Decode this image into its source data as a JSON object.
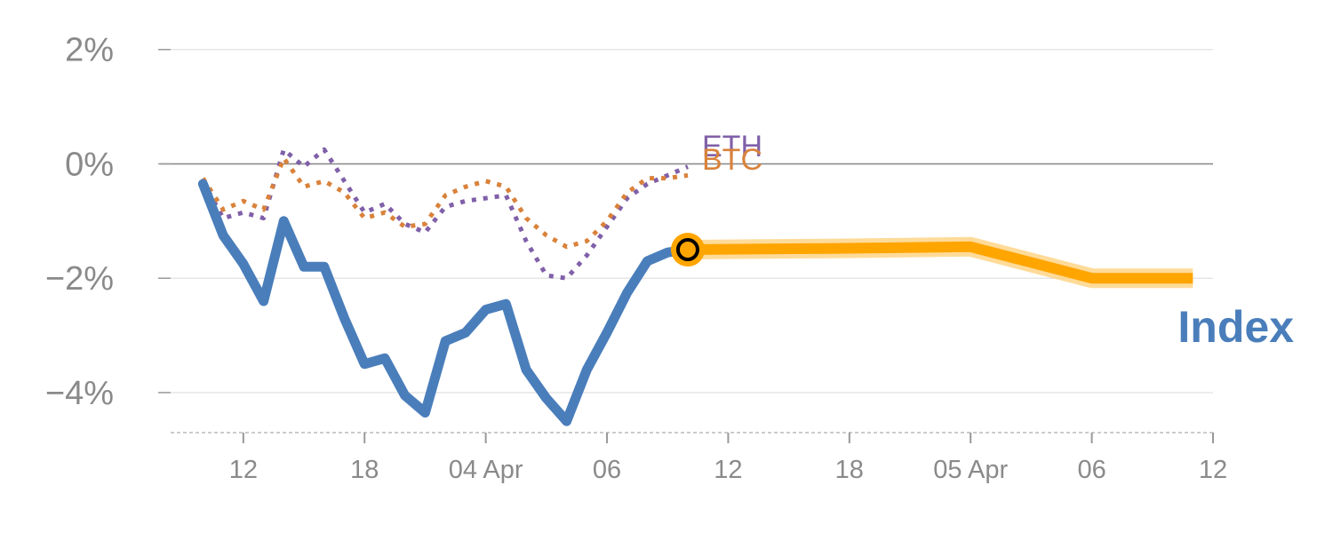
{
  "chart_data": {
    "type": "line",
    "title": "",
    "xlabel": "",
    "ylabel": "",
    "ylim": [
      -4.7,
      2.4
    ],
    "y_ticks": [
      {
        "value": 2,
        "label": "2%"
      },
      {
        "value": 0,
        "label": "0%"
      },
      {
        "value": -2,
        "label": "−2%"
      },
      {
        "value": -4,
        "label": "−4%"
      }
    ],
    "x_ticks": [
      {
        "x": 12,
        "label": "12"
      },
      {
        "x": 18,
        "label": "18"
      },
      {
        "x": 24,
        "label": "04 Apr"
      },
      {
        "x": 30,
        "label": "06"
      },
      {
        "x": 36,
        "label": "12"
      },
      {
        "x": 42,
        "label": "18"
      },
      {
        "x": 48,
        "label": "05 Apr"
      },
      {
        "x": 54,
        "label": "06"
      },
      {
        "x": 60,
        "label": "12"
      }
    ],
    "xlim": [
      8.4,
      60
    ],
    "zero_line": 0,
    "grid": true,
    "colors": {
      "index": "#4a7ebb",
      "btc": "#d9823b",
      "eth": "#8060a8",
      "forecast": "#ffa500",
      "forecast_glow": "#ffd27f",
      "grid": "#e6e6e6",
      "zero": "#888888",
      "axis": "#999999"
    },
    "series": [
      {
        "name": "Index",
        "style": "solid",
        "x": [
          10,
          11,
          12,
          13,
          14,
          15,
          16,
          17,
          18,
          19,
          20,
          21,
          22,
          23,
          24,
          25,
          26,
          27,
          28,
          29,
          30,
          31,
          32,
          33,
          34
        ],
        "y": [
          -0.35,
          -1.25,
          -1.75,
          -2.4,
          -1.0,
          -1.8,
          -1.8,
          -2.7,
          -3.5,
          -3.4,
          -4.05,
          -4.35,
          -3.1,
          -2.95,
          -2.55,
          -2.45,
          -3.6,
          -4.1,
          -4.5,
          -3.6,
          -2.95,
          -2.25,
          -1.7,
          -1.55,
          -1.5
        ]
      },
      {
        "name": "BTC",
        "style": "dotted",
        "x": [
          10,
          11,
          12,
          13,
          14,
          15,
          16,
          17,
          18,
          19,
          20,
          21,
          22,
          23,
          24,
          25,
          26,
          27,
          28,
          29,
          30,
          31,
          32,
          33,
          34
        ],
        "y": [
          -0.25,
          -0.8,
          -0.65,
          -0.8,
          0.1,
          -0.4,
          -0.3,
          -0.5,
          -0.95,
          -0.85,
          -1.1,
          -1.05,
          -0.55,
          -0.4,
          -0.3,
          -0.4,
          -0.95,
          -1.25,
          -1.45,
          -1.35,
          -1.0,
          -0.5,
          -0.25,
          -0.25,
          -0.2
        ]
      },
      {
        "name": "ETH",
        "style": "dotted",
        "x": [
          10,
          11,
          12,
          13,
          14,
          15,
          16,
          17,
          18,
          19,
          20,
          21,
          22,
          23,
          24,
          25,
          26,
          27,
          28,
          29,
          30,
          31,
          32,
          33,
          34
        ],
        "y": [
          -0.3,
          -0.95,
          -0.85,
          -0.95,
          0.25,
          -0.05,
          0.25,
          -0.3,
          -0.85,
          -0.7,
          -1.05,
          -1.2,
          -0.75,
          -0.65,
          -0.6,
          -0.55,
          -1.35,
          -1.95,
          -2.0,
          -1.6,
          -1.1,
          -0.6,
          -0.35,
          -0.2,
          -0.05
        ]
      },
      {
        "name": "Index forecast",
        "style": "highlight",
        "x": [
          34,
          41,
          48,
          54,
          59
        ],
        "y": [
          -1.5,
          -1.48,
          -1.45,
          -2.0,
          -2.0
        ]
      }
    ],
    "marker": {
      "x": 34,
      "y": -1.5
    },
    "labels": {
      "eth": "ETH",
      "btc": "BTC",
      "index": "Index"
    }
  }
}
